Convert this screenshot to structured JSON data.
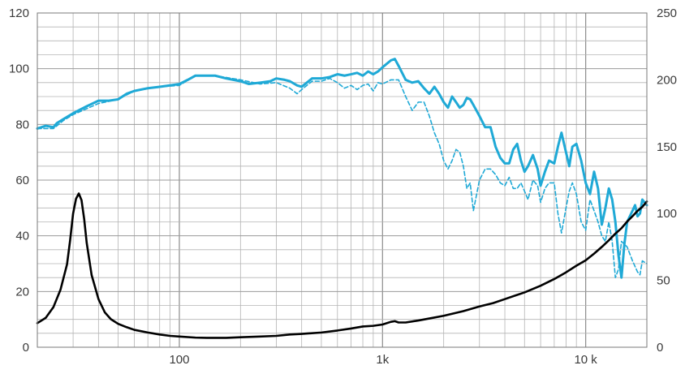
{
  "chart_data": {
    "type": "line",
    "x_scale": "log",
    "xlim": [
      20,
      20000
    ],
    "ylim_left": [
      0,
      120
    ],
    "ylim_right": [
      0,
      250
    ],
    "grid": true,
    "left_ticks": [
      "0",
      "20",
      "40",
      "60",
      "80",
      "100",
      "120"
    ],
    "right_ticks": [
      "0",
      "50",
      "100",
      "150",
      "200",
      "250"
    ],
    "x_ticks": [
      {
        "value": 100,
        "label": "100"
      },
      {
        "value": 1000,
        "label": "1k"
      },
      {
        "value": 10000,
        "label": "10 k"
      }
    ],
    "colors": {
      "spl": "#1fa9d6",
      "impedance": "#000000",
      "grid": "#b4b4b4",
      "frame": "#7a7a7a"
    },
    "series": [
      {
        "axis": "left",
        "style": "solid",
        "color": "#1fa9d6",
        "points": [
          [
            20,
            78.5
          ],
          [
            22,
            79.5
          ],
          [
            24,
            79
          ],
          [
            25,
            80.5
          ],
          [
            27,
            82
          ],
          [
            30,
            84
          ],
          [
            35,
            86.5
          ],
          [
            40,
            88.5
          ],
          [
            45,
            88.5
          ],
          [
            50,
            89
          ],
          [
            55,
            91
          ],
          [
            60,
            92
          ],
          [
            70,
            93
          ],
          [
            80,
            93.5
          ],
          [
            90,
            94
          ],
          [
            100,
            94.5
          ],
          [
            110,
            96
          ],
          [
            120,
            97.5
          ],
          [
            130,
            97.5
          ],
          [
            150,
            97.5
          ],
          [
            170,
            96.5
          ],
          [
            200,
            95.5
          ],
          [
            220,
            94.5
          ],
          [
            250,
            95
          ],
          [
            280,
            95.5
          ],
          [
            300,
            96.5
          ],
          [
            330,
            96
          ],
          [
            350,
            95.5
          ],
          [
            380,
            94
          ],
          [
            400,
            93.5
          ],
          [
            450,
            96.5
          ],
          [
            500,
            96.5
          ],
          [
            550,
            97
          ],
          [
            600,
            98
          ],
          [
            650,
            97.5
          ],
          [
            700,
            98
          ],
          [
            750,
            98.5
          ],
          [
            800,
            97.5
          ],
          [
            850,
            99
          ],
          [
            900,
            98
          ],
          [
            950,
            99
          ],
          [
            1000,
            100.5
          ],
          [
            1100,
            103
          ],
          [
            1150,
            103.5
          ],
          [
            1200,
            101
          ],
          [
            1300,
            96
          ],
          [
            1400,
            95
          ],
          [
            1500,
            95.5
          ],
          [
            1600,
            93
          ],
          [
            1700,
            91
          ],
          [
            1800,
            93.5
          ],
          [
            1900,
            91
          ],
          [
            2000,
            88
          ],
          [
            2100,
            86
          ],
          [
            2200,
            90
          ],
          [
            2300,
            88
          ],
          [
            2400,
            86
          ],
          [
            2500,
            87
          ],
          [
            2600,
            89.5
          ],
          [
            2700,
            89
          ],
          [
            2800,
            87
          ],
          [
            3000,
            83
          ],
          [
            3200,
            79
          ],
          [
            3400,
            79
          ],
          [
            3600,
            72
          ],
          [
            3800,
            68
          ],
          [
            4000,
            66
          ],
          [
            4200,
            66
          ],
          [
            4400,
            71
          ],
          [
            4600,
            73
          ],
          [
            4800,
            67
          ],
          [
            5000,
            63
          ],
          [
            5200,
            65
          ],
          [
            5500,
            69
          ],
          [
            5800,
            64
          ],
          [
            6000,
            58
          ],
          [
            6300,
            63
          ],
          [
            6600,
            67
          ],
          [
            7000,
            66
          ],
          [
            7300,
            72
          ],
          [
            7600,
            77
          ],
          [
            8000,
            70
          ],
          [
            8300,
            65
          ],
          [
            8600,
            72
          ],
          [
            9000,
            73
          ],
          [
            9500,
            67
          ],
          [
            10000,
            59
          ],
          [
            10500,
            55
          ],
          [
            11000,
            63
          ],
          [
            11500,
            57
          ],
          [
            12000,
            44
          ],
          [
            12500,
            50
          ],
          [
            13000,
            57
          ],
          [
            13500,
            53
          ],
          [
            14000,
            45
          ],
          [
            14500,
            33
          ],
          [
            15000,
            25
          ],
          [
            15500,
            37
          ],
          [
            16000,
            45
          ],
          [
            17000,
            49
          ],
          [
            17500,
            51
          ],
          [
            18000,
            47
          ],
          [
            18500,
            48
          ],
          [
            19000,
            53
          ],
          [
            20000,
            51
          ]
        ]
      },
      {
        "axis": "left",
        "style": "dashed",
        "color": "#1fa9d6",
        "points": [
          [
            20,
            78.5
          ],
          [
            24,
            78.5
          ],
          [
            27,
            81.5
          ],
          [
            30,
            83.5
          ],
          [
            40,
            87.5
          ],
          [
            50,
            89
          ],
          [
            60,
            92
          ],
          [
            80,
            93.5
          ],
          [
            100,
            94
          ],
          [
            120,
            97.5
          ],
          [
            150,
            97.5
          ],
          [
            200,
            96
          ],
          [
            250,
            94.5
          ],
          [
            300,
            95
          ],
          [
            350,
            93
          ],
          [
            380,
            91
          ],
          [
            400,
            92.5
          ],
          [
            450,
            95.5
          ],
          [
            500,
            95.5
          ],
          [
            550,
            96.5
          ],
          [
            600,
            95
          ],
          [
            650,
            93
          ],
          [
            700,
            94
          ],
          [
            750,
            92.5
          ],
          [
            800,
            94
          ],
          [
            850,
            94.5
          ],
          [
            900,
            92
          ],
          [
            950,
            95
          ],
          [
            1000,
            94.5
          ],
          [
            1100,
            96
          ],
          [
            1200,
            96
          ],
          [
            1300,
            90
          ],
          [
            1400,
            85
          ],
          [
            1500,
            88
          ],
          [
            1600,
            88
          ],
          [
            1700,
            83
          ],
          [
            1800,
            77
          ],
          [
            1900,
            73
          ],
          [
            2000,
            67
          ],
          [
            2100,
            64
          ],
          [
            2200,
            67
          ],
          [
            2300,
            71
          ],
          [
            2400,
            70
          ],
          [
            2500,
            65
          ],
          [
            2600,
            57
          ],
          [
            2700,
            59
          ],
          [
            2800,
            49
          ],
          [
            3000,
            60
          ],
          [
            3200,
            64
          ],
          [
            3400,
            64
          ],
          [
            3600,
            62
          ],
          [
            3800,
            59
          ],
          [
            4000,
            58
          ],
          [
            4200,
            61
          ],
          [
            4400,
            57
          ],
          [
            4600,
            57
          ],
          [
            4800,
            59
          ],
          [
            5000,
            56
          ],
          [
            5200,
            53
          ],
          [
            5500,
            60
          ],
          [
            5800,
            58
          ],
          [
            6000,
            52
          ],
          [
            6300,
            57
          ],
          [
            6600,
            59
          ],
          [
            7000,
            59
          ],
          [
            7300,
            48
          ],
          [
            7600,
            41
          ],
          [
            8000,
            50
          ],
          [
            8300,
            56
          ],
          [
            8600,
            59
          ],
          [
            9000,
            55
          ],
          [
            9500,
            45
          ],
          [
            10000,
            42
          ],
          [
            10500,
            53
          ],
          [
            11000,
            49
          ],
          [
            11500,
            45
          ],
          [
            12000,
            40
          ],
          [
            12500,
            38
          ],
          [
            13000,
            45
          ],
          [
            13500,
            38
          ],
          [
            14000,
            25
          ],
          [
            14500,
            28
          ],
          [
            15000,
            38
          ],
          [
            15500,
            37
          ],
          [
            16000,
            36
          ],
          [
            17000,
            31
          ],
          [
            18000,
            27
          ],
          [
            18500,
            26
          ],
          [
            19000,
            31
          ],
          [
            20000,
            30
          ]
        ]
      },
      {
        "axis": "right",
        "style": "solid",
        "color": "#000000",
        "points": [
          [
            20,
            18
          ],
          [
            22,
            22
          ],
          [
            24,
            30
          ],
          [
            26,
            43
          ],
          [
            28,
            62
          ],
          [
            29,
            80
          ],
          [
            30,
            100
          ],
          [
            31,
            111
          ],
          [
            32,
            115
          ],
          [
            33,
            110
          ],
          [
            34,
            96
          ],
          [
            35,
            78
          ],
          [
            37,
            54
          ],
          [
            40,
            36
          ],
          [
            43,
            26
          ],
          [
            46,
            21
          ],
          [
            50,
            17.5
          ],
          [
            55,
            15
          ],
          [
            60,
            13
          ],
          [
            70,
            11
          ],
          [
            80,
            9.5
          ],
          [
            90,
            8.5
          ],
          [
            100,
            8
          ],
          [
            120,
            7.2
          ],
          [
            140,
            7
          ],
          [
            170,
            7
          ],
          [
            200,
            7.5
          ],
          [
            250,
            8
          ],
          [
            300,
            8.5
          ],
          [
            350,
            9.5
          ],
          [
            400,
            10
          ],
          [
            500,
            11
          ],
          [
            600,
            12.5
          ],
          [
            700,
            14
          ],
          [
            800,
            15.5
          ],
          [
            900,
            16
          ],
          [
            1000,
            17
          ],
          [
            1100,
            19
          ],
          [
            1150,
            19.5
          ],
          [
            1200,
            18.5
          ],
          [
            1300,
            18.5
          ],
          [
            1500,
            20
          ],
          [
            1700,
            21.5
          ],
          [
            2000,
            23.5
          ],
          [
            2500,
            27
          ],
          [
            3000,
            30.5
          ],
          [
            3500,
            33
          ],
          [
            4000,
            36
          ],
          [
            5000,
            41
          ],
          [
            6000,
            46
          ],
          [
            7000,
            51
          ],
          [
            8000,
            56
          ],
          [
            9000,
            61
          ],
          [
            10000,
            65
          ],
          [
            11000,
            70
          ],
          [
            12000,
            75
          ],
          [
            13000,
            80
          ],
          [
            14000,
            85
          ],
          [
            15000,
            89
          ],
          [
            16000,
            94
          ],
          [
            17000,
            98
          ],
          [
            18000,
            102
          ],
          [
            19000,
            105
          ],
          [
            20000,
            109
          ]
        ]
      }
    ]
  }
}
